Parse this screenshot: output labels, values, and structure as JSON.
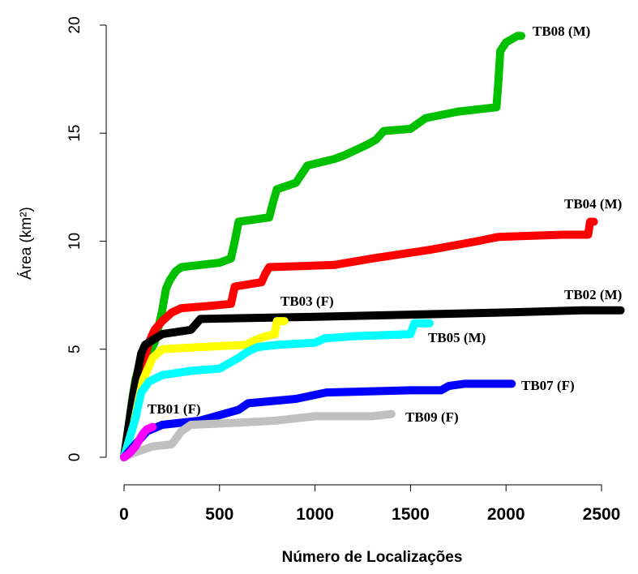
{
  "chart_data": {
    "type": "line",
    "xlabel": "Número de Localizações",
    "ylabel": "Área (km²)",
    "xlim": [
      0,
      2600
    ],
    "ylim": [
      0,
      20
    ],
    "xticks": [
      "0",
      "500",
      "1000",
      "1500",
      "2000",
      "2500"
    ],
    "yticks": [
      "0",
      "5",
      "10",
      "15",
      "20"
    ],
    "series": [
      {
        "name": "TB08 (M)",
        "color": "#00c000",
        "points": [
          [
            0,
            0
          ],
          [
            20,
            1.2
          ],
          [
            40,
            2.5
          ],
          [
            60,
            3.6
          ],
          [
            80,
            4.2
          ],
          [
            100,
            4.6
          ],
          [
            130,
            4.8
          ],
          [
            160,
            5.3
          ],
          [
            180,
            6.0
          ],
          [
            200,
            6.8
          ],
          [
            220,
            7.8
          ],
          [
            240,
            8.2
          ],
          [
            270,
            8.6
          ],
          [
            300,
            8.8
          ],
          [
            400,
            8.9
          ],
          [
            500,
            9.0
          ],
          [
            560,
            9.2
          ],
          [
            580,
            10.0
          ],
          [
            600,
            10.9
          ],
          [
            760,
            11.1
          ],
          [
            780,
            11.8
          ],
          [
            800,
            12.4
          ],
          [
            900,
            12.7
          ],
          [
            960,
            13.5
          ],
          [
            1100,
            13.8
          ],
          [
            1160,
            14.0
          ],
          [
            1280,
            14.5
          ],
          [
            1320,
            14.7
          ],
          [
            1360,
            15.1
          ],
          [
            1500,
            15.2
          ],
          [
            1580,
            15.7
          ],
          [
            1750,
            16.0
          ],
          [
            1950,
            16.2
          ],
          [
            1960,
            17.4
          ],
          [
            1970,
            18.8
          ],
          [
            2000,
            19.2
          ],
          [
            2060,
            19.5
          ],
          [
            2080,
            19.5
          ]
        ]
      },
      {
        "name": "TB04 (M)",
        "color": "#ff0000",
        "points": [
          [
            0,
            0
          ],
          [
            30,
            1.5
          ],
          [
            60,
            2.8
          ],
          [
            90,
            4.0
          ],
          [
            130,
            5.3
          ],
          [
            160,
            5.9
          ],
          [
            200,
            6.3
          ],
          [
            250,
            6.7
          ],
          [
            300,
            6.9
          ],
          [
            440,
            7.0
          ],
          [
            560,
            7.1
          ],
          [
            580,
            7.9
          ],
          [
            720,
            8.1
          ],
          [
            740,
            8.5
          ],
          [
            760,
            8.8
          ],
          [
            1100,
            8.9
          ],
          [
            1300,
            9.2
          ],
          [
            1600,
            9.6
          ],
          [
            1850,
            10.0
          ],
          [
            1960,
            10.2
          ],
          [
            2300,
            10.3
          ],
          [
            2430,
            10.3
          ],
          [
            2440,
            10.9
          ],
          [
            2460,
            10.9
          ]
        ]
      },
      {
        "name": "TB02 (M)",
        "color": "#000000",
        "points": [
          [
            0,
            0
          ],
          [
            50,
            3.0
          ],
          [
            90,
            4.8
          ],
          [
            110,
            5.2
          ],
          [
            200,
            5.7
          ],
          [
            350,
            5.9
          ],
          [
            400,
            6.4
          ],
          [
            1000,
            6.5
          ],
          [
            1500,
            6.6
          ],
          [
            2000,
            6.7
          ],
          [
            2400,
            6.8
          ],
          [
            2600,
            6.8
          ]
        ]
      },
      {
        "name": "TB03 (F)",
        "color": "#ffff00",
        "points": [
          [
            0,
            0
          ],
          [
            50,
            1.5
          ],
          [
            80,
            2.8
          ],
          [
            100,
            3.6
          ],
          [
            130,
            4.2
          ],
          [
            150,
            4.6
          ],
          [
            200,
            5.0
          ],
          [
            400,
            5.1
          ],
          [
            640,
            5.2
          ],
          [
            680,
            5.4
          ],
          [
            740,
            5.6
          ],
          [
            790,
            5.7
          ],
          [
            800,
            6.3
          ],
          [
            840,
            6.3
          ]
        ]
      },
      {
        "name": "TB05 (M)",
        "color": "#00ffff",
        "points": [
          [
            0,
            0
          ],
          [
            60,
            1.8
          ],
          [
            90,
            3.0
          ],
          [
            130,
            3.5
          ],
          [
            200,
            3.8
          ],
          [
            350,
            4.0
          ],
          [
            500,
            4.1
          ],
          [
            600,
            4.6
          ],
          [
            650,
            4.9
          ],
          [
            700,
            5.1
          ],
          [
            800,
            5.2
          ],
          [
            1000,
            5.3
          ],
          [
            1050,
            5.5
          ],
          [
            1200,
            5.6
          ],
          [
            1500,
            5.7
          ],
          [
            1520,
            6.2
          ],
          [
            1600,
            6.2
          ]
        ]
      },
      {
        "name": "TB07 (F)",
        "color": "#0000ff",
        "points": [
          [
            0,
            0
          ],
          [
            80,
            0.8
          ],
          [
            120,
            1.2
          ],
          [
            200,
            1.5
          ],
          [
            300,
            1.6
          ],
          [
            400,
            1.7
          ],
          [
            600,
            2.2
          ],
          [
            650,
            2.5
          ],
          [
            900,
            2.7
          ],
          [
            1060,
            3.0
          ],
          [
            1500,
            3.1
          ],
          [
            1660,
            3.1
          ],
          [
            1700,
            3.3
          ],
          [
            1780,
            3.4
          ],
          [
            2030,
            3.4
          ]
        ]
      },
      {
        "name": "TB09 (F)",
        "color": "#c0c0c0",
        "points": [
          [
            0,
            0
          ],
          [
            50,
            0.2
          ],
          [
            150,
            0.5
          ],
          [
            250,
            0.6
          ],
          [
            300,
            1.2
          ],
          [
            350,
            1.5
          ],
          [
            600,
            1.6
          ],
          [
            800,
            1.7
          ],
          [
            900,
            1.8
          ],
          [
            1000,
            1.9
          ],
          [
            1300,
            1.9
          ],
          [
            1400,
            2.0
          ]
        ]
      },
      {
        "name": "TB01 (F)",
        "color": "#ff00ff",
        "points": [
          [
            0,
            0
          ],
          [
            30,
            0.2
          ],
          [
            60,
            0.5
          ],
          [
            80,
            0.8
          ],
          [
            100,
            1.1
          ],
          [
            120,
            1.3
          ],
          [
            150,
            1.4
          ]
        ]
      }
    ]
  }
}
